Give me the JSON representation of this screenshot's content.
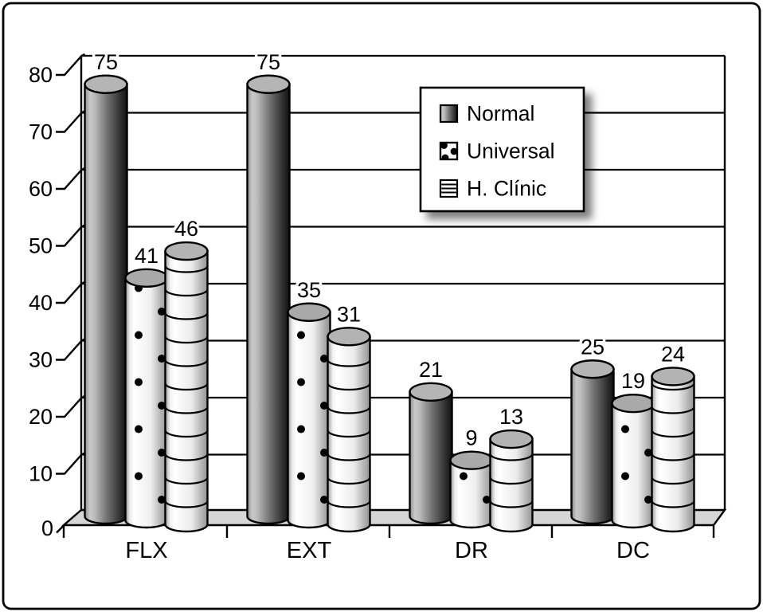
{
  "chart_data": {
    "type": "bar",
    "bar_style": "3d-cylinder",
    "title": "",
    "xlabel": "",
    "ylabel": "",
    "categories": [
      "FLX",
      "EXT",
      "DR",
      "DC"
    ],
    "series": [
      {
        "name": "Normal",
        "pattern": "solid",
        "values": [
          75,
          75,
          21,
          25
        ]
      },
      {
        "name": "Universal",
        "pattern": "dots",
        "values": [
          41,
          35,
          9,
          19
        ]
      },
      {
        "name": "H. Clínic",
        "pattern": "hlines",
        "values": [
          46,
          31,
          13,
          24
        ]
      }
    ],
    "value_labels_shown": true,
    "ylim": [
      0,
      80
    ],
    "yticks": [
      0,
      10,
      20,
      30,
      40,
      50,
      60,
      70,
      80
    ],
    "grid": "horizontal",
    "legend_position": "top-right"
  },
  "colors": {
    "background": "#ffffff",
    "outline": "#000000",
    "floor": "#d6d6d6",
    "cylinder_top_gray": "#b3b3b3"
  }
}
